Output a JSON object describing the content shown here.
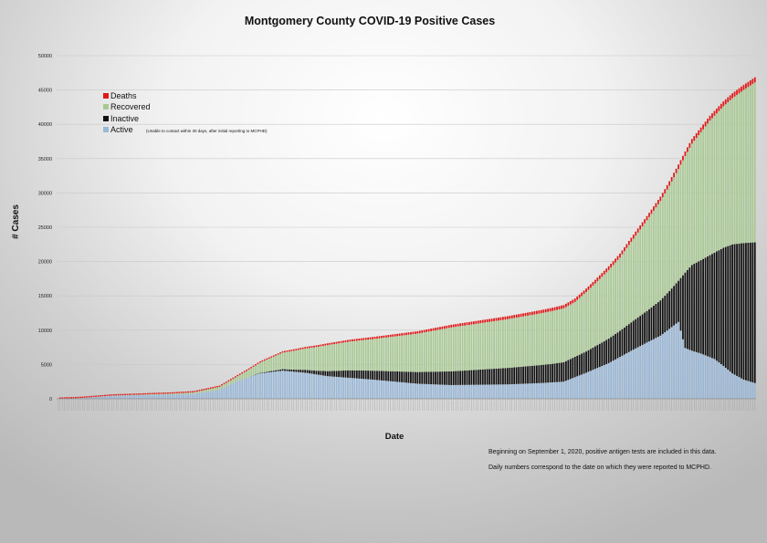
{
  "chart_data": {
    "type": "bar",
    "stacked": true,
    "title": "Montgomery County COVID-19 Positive Cases",
    "xlabel": "Date",
    "ylabel": "# Cases",
    "ylim": [
      0,
      50000
    ],
    "yticks": [
      0,
      5000,
      10000,
      15000,
      20000,
      25000,
      30000,
      35000,
      40000,
      45000,
      50000
    ],
    "grid": "horizontal",
    "legend_position": "top-left",
    "legend_note": "(Unable to contact within 30 days, after initial reporting to MCPHD)",
    "series_colors": {
      "Active": "#9ab8d8",
      "Inactive": "#111111",
      "Recovered": "#a9c994",
      "Deaths": "#e01818"
    },
    "series": [
      {
        "name": "Active",
        "keypoints": [
          [
            0,
            0
          ],
          [
            10,
            100
          ],
          [
            25,
            450
          ],
          [
            45,
            600
          ],
          [
            60,
            700
          ],
          [
            72,
            1300
          ],
          [
            80,
            2600
          ],
          [
            90,
            3700
          ],
          [
            100,
            4100
          ],
          [
            110,
            3800
          ],
          [
            120,
            3300
          ],
          [
            140,
            2800
          ],
          [
            160,
            2200
          ],
          [
            175,
            2000
          ],
          [
            200,
            2100
          ],
          [
            215,
            2300
          ],
          [
            225,
            2500
          ],
          [
            235,
            3800
          ],
          [
            245,
            5200
          ],
          [
            255,
            7000
          ],
          [
            262,
            8200
          ],
          [
            268,
            9200
          ],
          [
            272,
            10200
          ],
          [
            276,
            11200
          ],
          [
            279,
            7400
          ],
          [
            282,
            7000
          ],
          [
            286,
            6600
          ],
          [
            292,
            5800
          ],
          [
            296,
            4800
          ],
          [
            300,
            3700
          ],
          [
            305,
            2800
          ],
          [
            310,
            2300
          ]
        ]
      },
      {
        "name": "Inactive",
        "keypoints": [
          [
            0,
            0
          ],
          [
            85,
            0
          ],
          [
            95,
            150
          ],
          [
            105,
            300
          ],
          [
            115,
            550
          ],
          [
            130,
            1100
          ],
          [
            150,
            1500
          ],
          [
            175,
            2000
          ],
          [
            200,
            2400
          ],
          [
            220,
            2700
          ],
          [
            235,
            3100
          ],
          [
            250,
            3800
          ],
          [
            262,
            4600
          ],
          [
            272,
            5500
          ],
          [
            276,
            6000
          ],
          [
            279,
            11000
          ],
          [
            282,
            12500
          ],
          [
            286,
            13600
          ],
          [
            292,
            15500
          ],
          [
            296,
            17200
          ],
          [
            300,
            18800
          ],
          [
            305,
            19900
          ],
          [
            310,
            20500
          ]
        ]
      },
      {
        "name": "Recovered",
        "keypoints": [
          [
            0,
            0
          ],
          [
            30,
            40
          ],
          [
            50,
            120
          ],
          [
            62,
            250
          ],
          [
            72,
            450
          ],
          [
            80,
            700
          ],
          [
            90,
            1500
          ],
          [
            100,
            2400
          ],
          [
            110,
            3100
          ],
          [
            120,
            3800
          ],
          [
            140,
            4600
          ],
          [
            160,
            5600
          ],
          [
            175,
            6400
          ],
          [
            200,
            7100
          ],
          [
            220,
            7700
          ],
          [
            230,
            8000
          ],
          [
            240,
            9300
          ],
          [
            250,
            10700
          ],
          [
            260,
            12800
          ],
          [
            270,
            14900
          ],
          [
            280,
            17200
          ],
          [
            290,
            19600
          ],
          [
            300,
            21300
          ],
          [
            310,
            23300
          ]
        ]
      },
      {
        "name": "Deaths",
        "keypoints": [
          [
            0,
            0
          ],
          [
            40,
            30
          ],
          [
            60,
            60
          ],
          [
            80,
            100
          ],
          [
            100,
            200
          ],
          [
            140,
            300
          ],
          [
            180,
            400
          ],
          [
            220,
            470
          ],
          [
            250,
            560
          ],
          [
            280,
            680
          ],
          [
            310,
            750
          ]
        ]
      }
    ],
    "x_tick_labels_printed": "dates, one per bar (too small to read)"
  },
  "notes": {
    "line1": "Beginning on September 1, 2020, positive antigen tests are included in this data.",
    "line2": "Daily numbers correspond to the date on which they were reported to MCPHD."
  }
}
